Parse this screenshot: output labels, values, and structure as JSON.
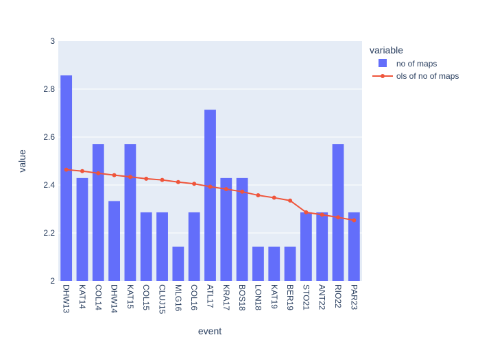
{
  "chart_data": {
    "type": "bar",
    "title": "",
    "xlabel": "event",
    "ylabel": "value",
    "ylim": [
      2,
      3
    ],
    "yticks": [
      2,
      2.2,
      2.4,
      2.6,
      2.8,
      3
    ],
    "ytick_labels": [
      "2",
      "2.2",
      "2.4",
      "2.6",
      "2.8",
      "3"
    ],
    "grid": true,
    "legend": {
      "title": "variable",
      "placement": "right"
    },
    "categories": [
      "DHW13",
      "KAT14",
      "COL14",
      "DHW14",
      "KAT15",
      "COL15",
      "CLUJ15",
      "MLG16",
      "COL16",
      "ATL17",
      "KRA17",
      "BOS18",
      "LON18",
      "KAT19",
      "BER19",
      "STO21",
      "ANT22",
      "RIO22",
      "PAR23"
    ],
    "series": [
      {
        "name": "no of maps",
        "type": "bar",
        "color": "#636efa",
        "values": [
          2.857,
          2.429,
          2.571,
          2.333,
          2.571,
          2.286,
          2.286,
          2.143,
          2.286,
          2.714,
          2.429,
          2.429,
          2.143,
          2.143,
          2.143,
          2.286,
          2.286,
          2.571,
          2.286
        ]
      },
      {
        "name": "ols of no of maps",
        "type": "line",
        "color": "#ef553b",
        "values": [
          2.464,
          2.458,
          2.449,
          2.441,
          2.434,
          2.426,
          2.421,
          2.412,
          2.405,
          2.393,
          2.383,
          2.372,
          2.357,
          2.347,
          2.335,
          2.286,
          2.276,
          2.265,
          2.253
        ]
      }
    ]
  }
}
